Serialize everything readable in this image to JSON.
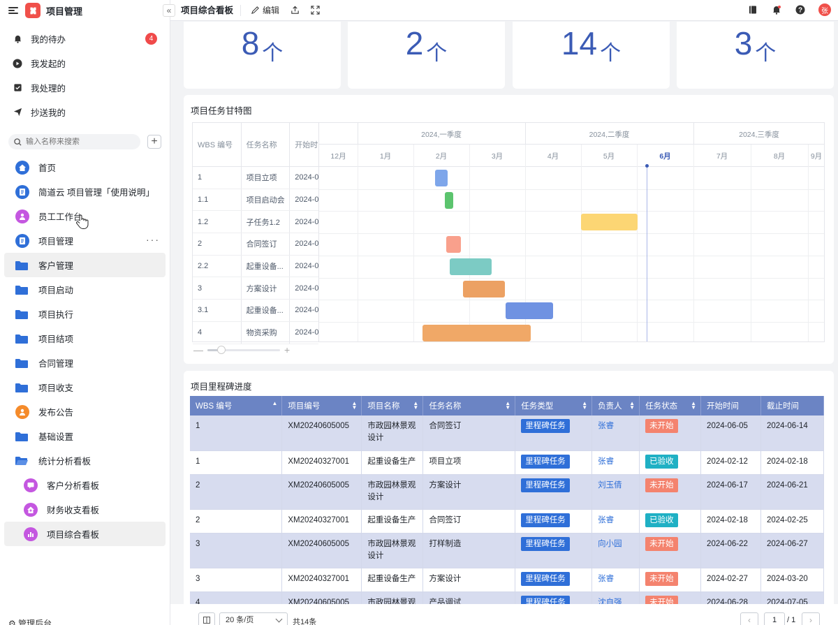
{
  "app": {
    "title": "项目管理"
  },
  "todo": [
    {
      "label": "我的待办",
      "icon": "bell-icon",
      "badge": "4"
    },
    {
      "label": "我发起的",
      "icon": "play-circle-icon"
    },
    {
      "label": "我处理的",
      "icon": "inbox-check-icon"
    },
    {
      "label": "抄送我的",
      "icon": "send-icon"
    }
  ],
  "search": {
    "placeholder": "输入名称来搜索"
  },
  "nav": [
    {
      "label": "首页",
      "icon": "home-icon",
      "color": "#2f6fd8"
    },
    {
      "label": "简道云 项目管理「使用说明」",
      "icon": "document-icon",
      "color": "#2f6fd8"
    },
    {
      "label": "员工工作台",
      "icon": "user-icon",
      "color": "#c457e0"
    },
    {
      "label": "项目管理",
      "icon": "document-icon",
      "color": "#2f6fd8",
      "more": "···"
    },
    {
      "label": "客户管理",
      "icon": "folder-icon"
    },
    {
      "label": "项目启动",
      "icon": "folder-icon"
    },
    {
      "label": "项目执行",
      "icon": "folder-icon"
    },
    {
      "label": "项目结项",
      "icon": "folder-icon"
    },
    {
      "label": "合同管理",
      "icon": "folder-icon"
    },
    {
      "label": "项目收支",
      "icon": "folder-icon"
    },
    {
      "label": "发布公告",
      "icon": "announce-icon",
      "color": "#f58b2b"
    },
    {
      "label": "基础设置",
      "icon": "folder-icon"
    },
    {
      "label": "统计分析看板",
      "icon": "folder-open-icon"
    },
    {
      "label": "客户分析看板",
      "icon": "chat-icon",
      "color": "#c457e0"
    },
    {
      "label": "财务收支看板",
      "icon": "house-up-icon",
      "color": "#c457e0"
    },
    {
      "label": "项目综合看板",
      "icon": "bar-chart-icon",
      "color": "#c457e0"
    }
  ],
  "admin_label": "管理后台",
  "topbar": {
    "title": "项目综合看板",
    "edit": "编辑"
  },
  "user": {
    "initial": "张"
  },
  "stats": [
    {
      "value": "8",
      "unit": "个"
    },
    {
      "value": "2",
      "unit": "个"
    },
    {
      "value": "14",
      "unit": "个"
    },
    {
      "value": "3",
      "unit": "个"
    }
  ],
  "gantt": {
    "title": "项目任务甘特图",
    "headers": {
      "wbs": "WBS 编号",
      "name": "任务名称",
      "start": "开始时间"
    },
    "quarters": [
      "2024,一季度",
      "2024,二季度",
      "2024,三季度"
    ],
    "months": [
      "12月",
      "1月",
      "2月",
      "3月",
      "4月",
      "5月",
      "6月",
      "7月",
      "8月",
      "9月"
    ],
    "today_label": "6月",
    "rows": [
      {
        "wbs": "1",
        "name": "项目立项",
        "start": "2024-0",
        "color": "#7ea6ea"
      },
      {
        "wbs": "1.1",
        "name": "项目启动会",
        "start": "2024-0",
        "color": "#5cc46e"
      },
      {
        "wbs": "1.2",
        "name": "子任务1.2",
        "start": "2024-0",
        "color": "#fcd674"
      },
      {
        "wbs": "2",
        "name": "合同签订",
        "start": "2024-0",
        "color": "#f9a08c"
      },
      {
        "wbs": "2.2",
        "name": "起重设备...",
        "start": "2024-0",
        "color": "#7ccbc4"
      },
      {
        "wbs": "3",
        "name": "方案设计",
        "start": "2024-0",
        "color": "#eca163"
      },
      {
        "wbs": "3.1",
        "name": "起重设备...",
        "start": "2024-0",
        "color": "#6f92e2"
      },
      {
        "wbs": "4",
        "name": "物资采购",
        "start": "2024-0",
        "color": "#f0a867"
      }
    ]
  },
  "milestone": {
    "title": "项目里程碑进度",
    "columns": [
      "WBS 编号",
      "项目编号",
      "项目名称",
      "任务名称",
      "任务类型",
      "负责人",
      "任务状态",
      "开始时间",
      "截止时间"
    ],
    "rows": [
      {
        "wbs": "1",
        "code": "XM20240605005",
        "project": "市政园林景观设计",
        "task": "合同签订",
        "type": "里程碑任务",
        "owner": "张睿",
        "status": "未开始",
        "status_color": "red",
        "start": "2024-06-05",
        "end": "2024-06-14"
      },
      {
        "wbs": "1",
        "code": "XM20240327001",
        "project": "起重设备生产",
        "task": "项目立项",
        "type": "里程碑任务",
        "owner": "张睿",
        "status": "已验收",
        "status_color": "teal",
        "start": "2024-02-12",
        "end": "2024-02-18"
      },
      {
        "wbs": "2",
        "code": "XM20240605005",
        "project": "市政园林景观设计",
        "task": "方案设计",
        "type": "里程碑任务",
        "owner": "刘玉倩",
        "status": "未开始",
        "status_color": "red",
        "start": "2024-06-17",
        "end": "2024-06-21"
      },
      {
        "wbs": "2",
        "code": "XM20240327001",
        "project": "起重设备生产",
        "task": "合同签订",
        "type": "里程碑任务",
        "owner": "张睿",
        "status": "已验收",
        "status_color": "teal",
        "start": "2024-02-18",
        "end": "2024-02-25"
      },
      {
        "wbs": "3",
        "code": "XM20240605005",
        "project": "市政园林景观设计",
        "task": "打样制造",
        "type": "里程碑任务",
        "owner": "向小园",
        "status": "未开始",
        "status_color": "red",
        "start": "2024-06-22",
        "end": "2024-06-27"
      },
      {
        "wbs": "3",
        "code": "XM20240327001",
        "project": "起重设备生产",
        "task": "方案设计",
        "type": "里程碑任务",
        "owner": "张睿",
        "status": "未开始",
        "status_color": "red",
        "start": "2024-02-27",
        "end": "2024-03-20"
      },
      {
        "wbs": "4",
        "code": "XM20240605005",
        "project": "市政园林景观",
        "task": "产品调试",
        "type": "里程碑任务",
        "owner": "沈自强",
        "status": "未开始",
        "status_color": "red",
        "start": "2024-06-28",
        "end": "2024-07-05"
      }
    ]
  },
  "pager": {
    "size": "20 条/页",
    "total": "共14条",
    "current": "1",
    "of": "/ 1",
    "prev": "‹",
    "next": "›"
  }
}
